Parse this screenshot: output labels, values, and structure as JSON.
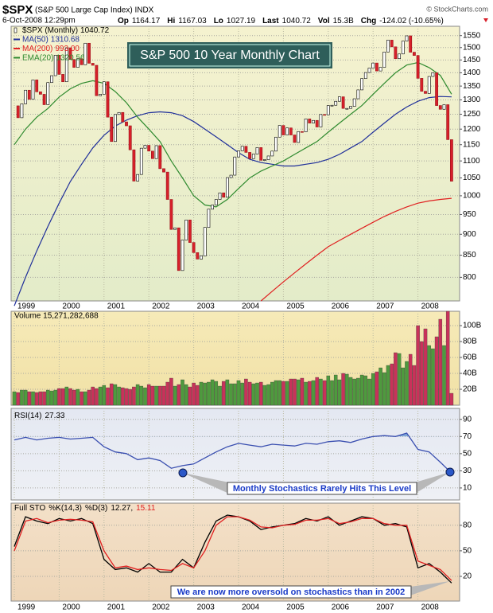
{
  "header": {
    "symbol": "$SPX",
    "description": "(S&P 500 Large Cap Index) INDX",
    "source": "© StockCharts.com",
    "date": "6-Oct-2008 12:29pm",
    "quote": [
      {
        "label": "Op",
        "value": "1164.17"
      },
      {
        "label": "Hi",
        "value": "1167.03"
      },
      {
        "label": "Lo",
        "value": "1027.19"
      },
      {
        "label": "Last",
        "value": "1040.72"
      },
      {
        "label": "Vol",
        "value": "15.3B"
      },
      {
        "label": "Chg",
        "value": "-124.02 (-10.65%)"
      }
    ]
  },
  "chart_data": [
    {
      "type": "candlestick",
      "title": "S&P 500 10 Year Monthly Chart",
      "log_scale": true,
      "grid": true,
      "categories": [
        null,
        null,
        null,
        null,
        null,
        null,
        null,
        null,
        null,
        null,
        null,
        null,
        null,
        null,
        null,
        null,
        null,
        null,
        null,
        null,
        null,
        null,
        null,
        null,
        null,
        null,
        null,
        null,
        null,
        null,
        null,
        null,
        null,
        null,
        null,
        null,
        null,
        null,
        null,
        null,
        null,
        null,
        null,
        null,
        null,
        null,
        null,
        null,
        null,
        null,
        null,
        null,
        null,
        null,
        null,
        null,
        null,
        null,
        null,
        null,
        null,
        null,
        null,
        null,
        null,
        null,
        null,
        null,
        null,
        null,
        null,
        null,
        null,
        null,
        null,
        null,
        null,
        null,
        null,
        null,
        null,
        null,
        null,
        null,
        null,
        null,
        null,
        null,
        null,
        null,
        null,
        null,
        null,
        null,
        null,
        null,
        null,
        null,
        null,
        null,
        null,
        null,
        null,
        null,
        null,
        null,
        null,
        null,
        null,
        null,
        null,
        null,
        null,
        null,
        null,
        null,
        null,
        null
      ],
      "xticks": [
        {
          "value": 0,
          "label": "1999"
        },
        {
          "value": 12,
          "label": "2000"
        },
        {
          "value": 24,
          "label": "2001"
        },
        {
          "value": 36,
          "label": "2002"
        },
        {
          "value": 48,
          "label": "2003"
        },
        {
          "value": 60,
          "label": "2004"
        },
        {
          "value": 72,
          "label": "2005"
        },
        {
          "value": 84,
          "label": "2006"
        },
        {
          "value": 96,
          "label": "2007"
        },
        {
          "value": 108,
          "label": "2008"
        }
      ],
      "ylim": [
        750,
        1590
      ],
      "yticks": [
        800,
        850,
        900,
        950,
        1000,
        1050,
        1100,
        1150,
        1200,
        1250,
        1300,
        1350,
        1400,
        1450,
        1500,
        1550
      ],
      "up_color": "#ffffff",
      "down_color": "#d8202a",
      "series": [
        {
          "name": "$SPX (Monthly)",
          "legend_value": "1040.72",
          "color": "#000000",
          "values": [
            1279,
            1238,
            1286,
            1335,
            1302,
            1373,
            1329,
            1320,
            1283,
            1363,
            1389,
            1469,
            1394,
            1366,
            1499,
            1452,
            1421,
            1455,
            1431,
            1518,
            1437,
            1429,
            1315,
            1320,
            1366,
            1240,
            1160,
            1249,
            1256,
            1224,
            1211,
            1134,
            1041,
            1060,
            1139,
            1148,
            1130,
            1107,
            1147,
            1077,
            1067,
            990,
            912,
            916,
            815,
            886,
            936,
            880,
            856,
            841,
            848,
            917,
            964,
            975,
            990,
            1008,
            996,
            1051,
            1058,
            1112,
            1131,
            1145,
            1126,
            1107,
            1121,
            1141,
            1102,
            1104,
            1115,
            1130,
            1174,
            1212,
            1181,
            1204,
            1181,
            1157,
            1192,
            1191,
            1234,
            1220,
            1229,
            1207,
            1249,
            1248,
            1280,
            1281,
            1295,
            1311,
            1270,
            1270,
            1277,
            1304,
            1336,
            1378,
            1401,
            1418,
            1438,
            1407,
            1421,
            1482,
            1531,
            1503,
            1455,
            1474,
            1527,
            1549,
            1481,
            1468,
            1379,
            1331,
            1323,
            1386,
            1400,
            1280,
            1267,
            1283,
            1166,
            1040.72
          ]
        },
        {
          "name": "MA(50)",
          "legend_value": "1310.68",
          "color": "#1f2f9a",
          "x": [
            0,
            3,
            6,
            9,
            12,
            15,
            18,
            21,
            24,
            27,
            30,
            33,
            36,
            39,
            42,
            45,
            48,
            51,
            54,
            57,
            60,
            63,
            66,
            69,
            72,
            75,
            78,
            81,
            84,
            87,
            90,
            93,
            96,
            99,
            102,
            105,
            108,
            111,
            114,
            117
          ],
          "values": [
            740,
            800,
            860,
            920,
            980,
            1040,
            1090,
            1140,
            1180,
            1210,
            1230,
            1245,
            1255,
            1258,
            1255,
            1245,
            1225,
            1200,
            1175,
            1150,
            1125,
            1105,
            1095,
            1090,
            1085,
            1085,
            1090,
            1095,
            1105,
            1120,
            1140,
            1160,
            1190,
            1220,
            1250,
            1275,
            1295,
            1308,
            1312,
            1310.68
          ]
        },
        {
          "name": "MA(200)",
          "legend_value": "993.00",
          "color": "#e02020",
          "x": [
            0,
            3,
            6,
            9,
            12,
            15,
            18,
            21,
            24,
            27,
            30,
            33,
            36,
            39,
            42,
            45,
            48,
            51,
            54,
            57,
            60,
            63,
            66,
            69,
            72,
            75,
            78,
            81,
            84,
            87,
            90,
            93,
            96,
            99,
            102,
            105,
            108,
            111,
            114,
            117
          ],
          "values": [
            null,
            null,
            null,
            null,
            null,
            null,
            null,
            null,
            null,
            null,
            null,
            null,
            null,
            null,
            null,
            null,
            null,
            null,
            null,
            null,
            null,
            null,
            750,
            770,
            790,
            810,
            830,
            850,
            870,
            885,
            900,
            915,
            930,
            945,
            958,
            970,
            980,
            986,
            990,
            993
          ]
        },
        {
          "name": "EMA(20)",
          "legend_value": "1320.56",
          "color": "#2e8a2e",
          "x": [
            0,
            3,
            6,
            9,
            12,
            15,
            18,
            21,
            24,
            27,
            30,
            33,
            36,
            39,
            42,
            45,
            48,
            51,
            54,
            57,
            60,
            63,
            66,
            69,
            72,
            75,
            78,
            81,
            84,
            87,
            90,
            93,
            96,
            99,
            102,
            105,
            108,
            111,
            114,
            117
          ],
          "values": [
            1150,
            1200,
            1240,
            1270,
            1310,
            1340,
            1360,
            1370,
            1360,
            1330,
            1290,
            1240,
            1200,
            1160,
            1100,
            1050,
            1000,
            975,
            970,
            990,
            1020,
            1050,
            1070,
            1085,
            1100,
            1120,
            1140,
            1160,
            1190,
            1220,
            1250,
            1280,
            1320,
            1360,
            1400,
            1430,
            1440,
            1420,
            1390,
            1320.56
          ]
        }
      ]
    },
    {
      "type": "bar",
      "label": "Volume 15,271,282,688",
      "ylim": [
        0,
        118
      ],
      "yticks": [
        {
          "value": 20,
          "label": "20B"
        },
        {
          "value": 40,
          "label": "40B"
        },
        {
          "value": 60,
          "label": "60B"
        },
        {
          "value": 80,
          "label": "80B"
        },
        {
          "value": 100,
          "label": "100B"
        }
      ],
      "up_color": "#4e9a3e",
      "down_color": "#c8325a",
      "values": [
        17,
        16,
        19,
        19,
        17,
        17,
        16,
        17,
        17,
        19,
        18,
        19,
        21,
        21,
        23,
        21,
        19,
        20,
        17,
        17,
        19,
        23,
        21,
        23,
        25,
        22,
        27,
        26,
        23,
        22,
        21,
        20,
        23,
        26,
        24,
        22,
        26,
        24,
        24,
        24,
        24,
        29,
        34,
        24,
        26,
        32,
        26,
        23,
        28,
        25,
        29,
        28,
        29,
        32,
        30,
        24,
        30,
        32,
        27,
        27,
        31,
        28,
        33,
        29,
        27,
        28,
        29,
        25,
        26,
        29,
        31,
        31,
        30,
        30,
        33,
        33,
        32,
        34,
        29,
        30,
        31,
        35,
        33,
        31,
        37,
        31,
        38,
        32,
        40,
        39,
        35,
        33,
        34,
        38,
        37,
        33,
        40,
        42,
        47,
        41,
        50,
        52,
        66,
        65,
        47,
        55,
        64,
        50,
        100,
        80,
        96,
        75,
        71,
        86,
        108,
        75,
        118,
        15
      ]
    },
    {
      "type": "line",
      "ylim": [
        -4,
        100
      ],
      "yticks": [
        10,
        30,
        50,
        70,
        90
      ],
      "fill_color": "#7fa6d6",
      "annotation": "Monthly Stochastics Rarely Hits This Level",
      "series": [
        {
          "name": "RSI(14)",
          "legend_value": "27.33",
          "color": "#3a4fb0",
          "x": [
            0,
            3,
            6,
            9,
            12,
            15,
            18,
            21,
            24,
            27,
            30,
            33,
            36,
            39,
            42,
            45,
            48,
            51,
            54,
            57,
            60,
            63,
            66,
            69,
            72,
            75,
            78,
            81,
            84,
            87,
            90,
            93,
            96,
            99,
            102,
            105,
            108,
            111,
            114,
            117
          ],
          "values": [
            66,
            69,
            66,
            68,
            69,
            67,
            68,
            69,
            58,
            52,
            50,
            43,
            45,
            42,
            33,
            36,
            38,
            45,
            52,
            58,
            62,
            60,
            58,
            61,
            60,
            59,
            62,
            61,
            64,
            65,
            63,
            67,
            70,
            71,
            70,
            74,
            55,
            52,
            40,
            27.33
          ]
        }
      ]
    },
    {
      "type": "line",
      "title": "Full STO",
      "ylim": [
        -9,
        106
      ],
      "yticks": [
        20,
        50,
        80
      ],
      "annotation": "We are now more oversold on stochastics than in 2002",
      "series": [
        {
          "name": "%K(14,3)",
          "legend_value": "12.27,",
          "color": "#000000",
          "x": [
            0,
            3,
            6,
            9,
            12,
            15,
            18,
            21,
            24,
            27,
            30,
            33,
            36,
            39,
            42,
            45,
            48,
            51,
            54,
            57,
            60,
            63,
            66,
            69,
            72,
            75,
            78,
            81,
            84,
            87,
            90,
            93,
            96,
            99,
            102,
            105,
            108,
            111,
            114,
            117
          ],
          "values": [
            55,
            90,
            85,
            82,
            88,
            85,
            88,
            82,
            40,
            28,
            30,
            25,
            35,
            25,
            25,
            40,
            30,
            60,
            85,
            92,
            90,
            85,
            75,
            78,
            80,
            82,
            88,
            85,
            90,
            80,
            85,
            90,
            88,
            80,
            82,
            78,
            30,
            35,
            25,
            12.27
          ]
        },
        {
          "name": "%D(3)",
          "legend_value": "15.11",
          "color": "#e02020",
          "x": [
            0,
            3,
            6,
            9,
            12,
            15,
            18,
            21,
            24,
            27,
            30,
            33,
            36,
            39,
            42,
            45,
            48,
            51,
            54,
            57,
            60,
            63,
            66,
            69,
            72,
            75,
            78,
            81,
            84,
            87,
            90,
            93,
            96,
            99,
            102,
            105,
            108,
            111,
            114,
            117
          ],
          "values": [
            50,
            85,
            88,
            83,
            86,
            87,
            86,
            84,
            50,
            30,
            32,
            28,
            30,
            28,
            27,
            35,
            30,
            50,
            80,
            90,
            90,
            86,
            78,
            77,
            80,
            81,
            86,
            86,
            88,
            82,
            84,
            88,
            88,
            82,
            80,
            80,
            38,
            33,
            28,
            15.11
          ]
        }
      ]
    }
  ]
}
